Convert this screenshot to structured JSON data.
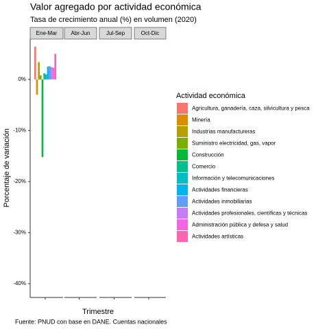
{
  "chart_data": {
    "type": "bar",
    "title": "Valor agregado por actividad económica",
    "subtitle": "Tasa de crecimiento anual (%) en volumen (2020)",
    "y_label": "Porcentaje de variación",
    "x_label": "Trimestre",
    "caption": "Fuente: PNUD con base en DANE. Cuentas nacionales",
    "legend_title": "Actividad económica",
    "facets": [
      "Ene-Mar",
      "Abr-Jun",
      "Jul-Sep",
      "Oct-Dic"
    ],
    "ylim": [
      -42.7,
      7.9
    ],
    "yticks": [
      {
        "value": 0,
        "label": "0%"
      },
      {
        "value": -10,
        "label": "-10%"
      },
      {
        "value": -20,
        "label": "-20%"
      },
      {
        "value": -30,
        "label": "-30%"
      },
      {
        "value": -40,
        "label": "-40%"
      }
    ],
    "series": [
      {
        "name": "Agricultura, ganadería, caza, silvicultura y pesca",
        "color": "#F8766D",
        "values": [
          6.4,
          null,
          null,
          null
        ]
      },
      {
        "name": "Minería",
        "color": "#DE8C00",
        "values": [
          -3.0,
          null,
          null,
          null
        ]
      },
      {
        "name": "Industrias manufactureras",
        "color": "#B79F00",
        "values": [
          3.4,
          null,
          null,
          null
        ]
      },
      {
        "name": "Suministro electricidad, gas, vapor",
        "color": "#7CAE00",
        "values": [
          0.8,
          null,
          null,
          null
        ]
      },
      {
        "name": "Construcción",
        "color": "#00BA38",
        "values": [
          -15.2,
          null,
          null,
          null
        ]
      },
      {
        "name": "Comercio",
        "color": "#00C08B",
        "values": [
          1.2,
          null,
          null,
          null
        ]
      },
      {
        "name": "Información y telecomunicaciones",
        "color": "#00BFC4",
        "values": [
          1.0,
          null,
          null,
          null
        ]
      },
      {
        "name": "Actividades financieras",
        "color": "#00B4F0",
        "values": [
          2.5,
          null,
          null,
          null
        ]
      },
      {
        "name": "Actividades inmobiliarias",
        "color": "#619CFF",
        "values": [
          2.6,
          null,
          null,
          null
        ]
      },
      {
        "name": "Actividades profesionales, científicas y técnicas",
        "color": "#C77CFF",
        "values": [
          2.4,
          null,
          null,
          null
        ]
      },
      {
        "name": "Administración pública y defesa y salud",
        "color": "#F564E3",
        "values": [
          2.3,
          null,
          null,
          null
        ]
      },
      {
        "name": "Actividades artísticas",
        "color": "#FF64B0",
        "values": [
          5.0,
          null,
          null,
          null
        ]
      }
    ]
  }
}
